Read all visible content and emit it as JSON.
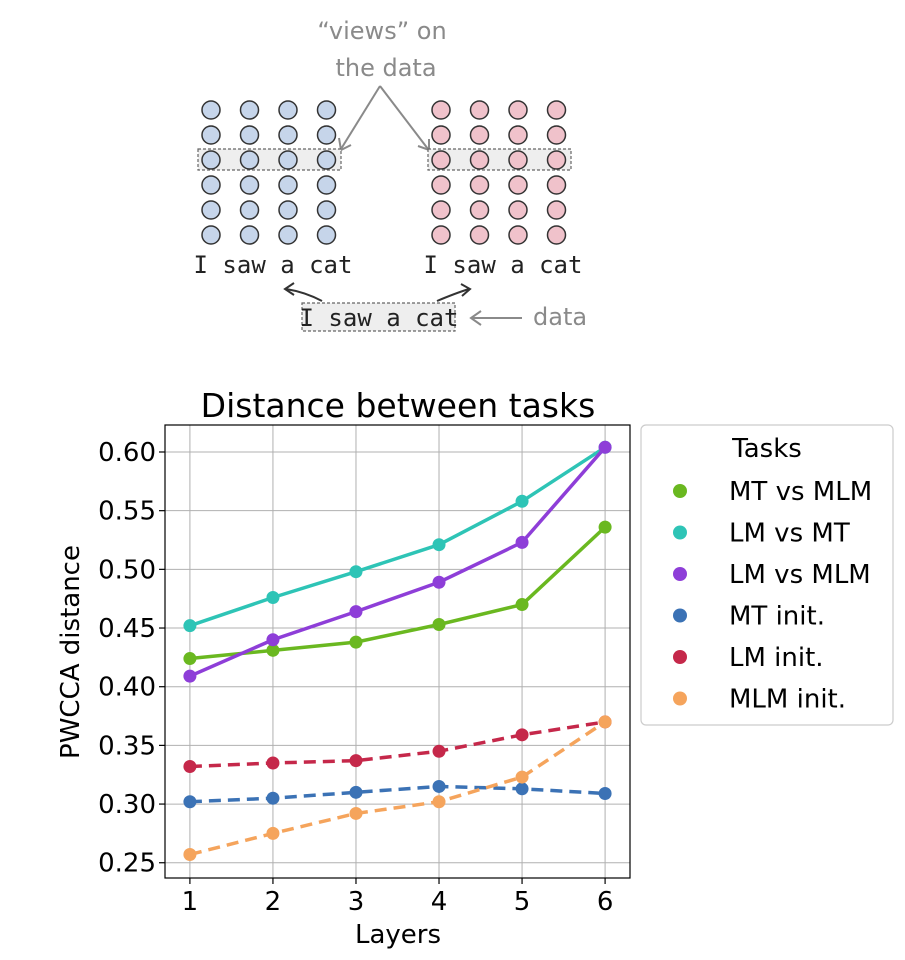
{
  "diagram": {
    "views_annotation": "“views” on the data",
    "views_line1": "“views” on",
    "views_line2": "the data",
    "left_sentence": "I saw a cat",
    "right_sentence": "I saw a cat",
    "data_sentence": "I saw a cat",
    "data_label": "data",
    "colors": {
      "left_fill": "#c6d5ea",
      "right_fill": "#f0c2cb",
      "stroke": "#333333",
      "highlight": "#eeeeee"
    }
  },
  "chart_data": {
    "type": "line",
    "title": "Distance between tasks",
    "xlabel": "Layers",
    "ylabel": "PWCCA distance",
    "x": [
      1,
      2,
      3,
      4,
      5,
      6
    ],
    "xlim": [
      0.7,
      6.3
    ],
    "ylim": [
      0.237,
      0.623
    ],
    "yticks": [
      "0.25",
      "0.30",
      "0.35",
      "0.40",
      "0.45",
      "0.50",
      "0.55",
      "0.60"
    ],
    "xticks": [
      "1",
      "2",
      "3",
      "4",
      "5",
      "6"
    ],
    "grid": true,
    "legend_title": "Tasks",
    "legend_position": "outside-right",
    "series": [
      {
        "name": "MT vs MLM",
        "color": "#6ab820",
        "dash": false,
        "values": [
          0.424,
          0.431,
          0.438,
          0.453,
          0.47,
          0.536
        ]
      },
      {
        "name": "LM vs MT",
        "color": "#2ec4b6",
        "dash": false,
        "values": [
          0.452,
          0.476,
          0.498,
          0.521,
          0.558,
          0.604
        ]
      },
      {
        "name": "LM vs MLM",
        "color": "#8e3ed8",
        "dash": false,
        "values": [
          0.409,
          0.44,
          0.464,
          0.489,
          0.523,
          0.604
        ]
      },
      {
        "name": "MT init.",
        "color": "#3b72b5",
        "dash": true,
        "values": [
          0.302,
          0.305,
          0.31,
          0.315,
          0.313,
          0.309
        ]
      },
      {
        "name": "LM init.",
        "color": "#c5284a",
        "dash": true,
        "values": [
          0.332,
          0.335,
          0.337,
          0.345,
          0.359,
          0.37
        ]
      },
      {
        "name": "MLM init.",
        "color": "#f5a45c",
        "dash": true,
        "values": [
          0.257,
          0.275,
          0.292,
          0.302,
          0.323,
          0.37
        ]
      }
    ]
  }
}
